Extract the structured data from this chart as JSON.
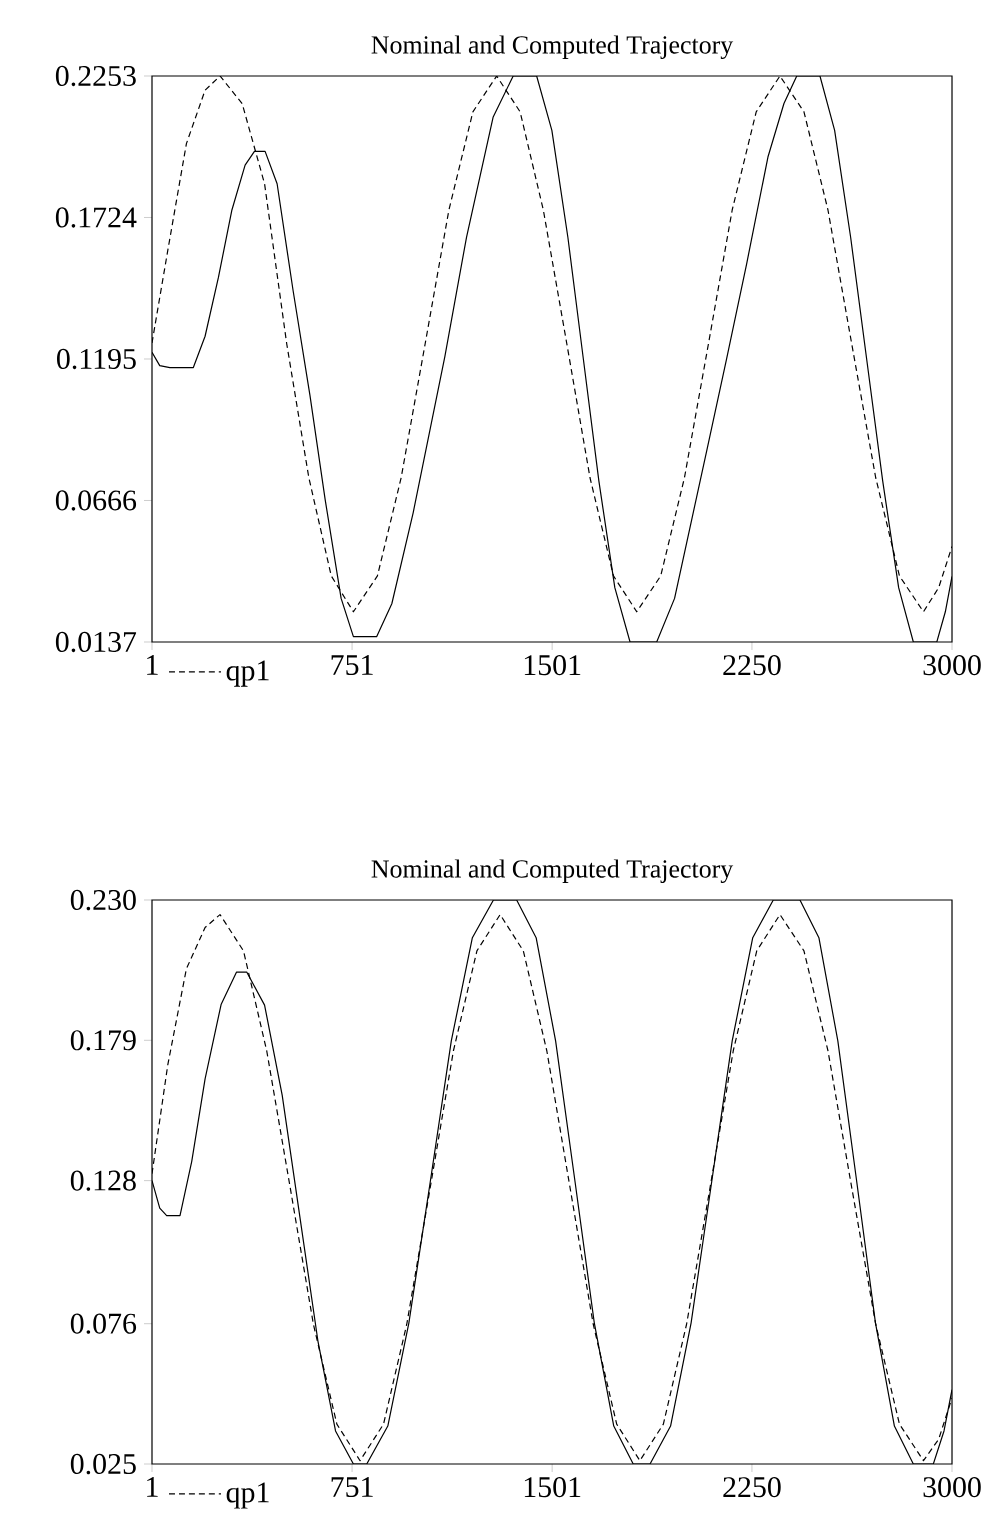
{
  "chart_data": [
    {
      "type": "line",
      "title": "Nominal and Computed Trajectory",
      "xlim": [
        1,
        3000
      ],
      "xticks": [
        1,
        751,
        1501,
        2250,
        3000
      ],
      "ylim": [
        0.0137,
        0.2253
      ],
      "yticks": [
        0.0137,
        0.0666,
        0.1195,
        0.1724,
        0.2253
      ],
      "legend": "bottom left",
      "series": [
        {
          "color": "#000000",
          "line_style": "solid",
          "x": [
            1,
            30,
            68,
            156,
            200,
            250,
            300,
            350,
            385,
            425,
            470,
            530,
            593,
            650,
            710,
            756,
            843,
            900,
            980,
            1099,
            1180,
            1280,
            1355,
            1443,
            1500,
            1560,
            1618,
            1676,
            1736,
            1793,
            1893,
            1960,
            2080,
            2155,
            2230,
            2310,
            2370,
            2418,
            2505,
            2560,
            2620,
            2680,
            2740,
            2800,
            2855,
            2943,
            2975,
            3000
          ],
          "values": [
            0.122,
            0.117,
            0.1163,
            0.1163,
            0.128,
            0.15,
            0.175,
            0.192,
            0.1971,
            0.1971,
            0.185,
            0.145,
            0.106,
            0.067,
            0.03,
            0.0157,
            0.0157,
            0.028,
            0.062,
            0.1205,
            0.165,
            0.21,
            0.2253,
            0.2253,
            0.205,
            0.165,
            0.1195,
            0.074,
            0.034,
            0.0137,
            0.0137,
            0.03,
            0.085,
            0.1195,
            0.155,
            0.195,
            0.215,
            0.2253,
            0.2253,
            0.205,
            0.165,
            0.1195,
            0.074,
            0.034,
            0.0137,
            0.0137,
            0.025,
            0.0382
          ]
        },
        {
          "name": "qp1",
          "color": "#000000",
          "line_style": "dashed",
          "x": [
            1,
            60,
            130,
            200,
            256,
            339,
            423,
            506,
            589,
            673,
            756,
            846,
            935,
            1025,
            1114,
            1204,
            1293,
            1381,
            1468,
            1556,
            1643,
            1731,
            1818,
            1908,
            1997,
            2087,
            2176,
            2266,
            2355,
            2445,
            2535,
            2624,
            2714,
            2803,
            2893,
            2950,
            3000
          ],
          "values": [
            0.1255,
            0.16,
            0.2,
            0.22,
            0.2253,
            0.215,
            0.185,
            0.1252,
            0.0751,
            0.0384,
            0.025,
            0.0384,
            0.0751,
            0.1252,
            0.1752,
            0.2119,
            0.2253,
            0.2119,
            0.1752,
            0.1252,
            0.0751,
            0.0384,
            0.025,
            0.0384,
            0.0751,
            0.1252,
            0.1752,
            0.2119,
            0.2253,
            0.2119,
            0.1752,
            0.1252,
            0.0751,
            0.0384,
            0.025,
            0.034,
            0.0494
          ]
        }
      ]
    },
    {
      "type": "line",
      "title": "Nominal and Computed Trajectory",
      "xlim": [
        1,
        3000
      ],
      "xticks": [
        1,
        751,
        1501,
        2250,
        3000
      ],
      "ylim": [
        0.025,
        0.23
      ],
      "yticks": [
        0.025,
        0.076,
        0.128,
        0.179,
        {
          "value": 0.23,
          "label": "0.230"
        }
      ],
      "legend": "bottom left",
      "series": [
        {
          "color": "#000000",
          "line_style": "solid",
          "x": [
            1,
            30,
            56,
            106,
            150,
            200,
            260,
            318,
            356,
            423,
            489,
            556,
            623,
            689,
            756,
            806,
            885,
            964,
            1044,
            1123,
            1202,
            1281,
            1368,
            1441,
            1514,
            1587,
            1659,
            1732,
            1805,
            1868,
            1945,
            2022,
            2099,
            2176,
            2253,
            2330,
            2430,
            2501,
            2572,
            2643,
            2713,
            2784,
            2855,
            2930,
            2970,
            3000
          ],
          "values": [
            0.128,
            0.118,
            0.1153,
            0.1153,
            0.135,
            0.165,
            0.192,
            0.2038,
            0.2038,
            0.1918,
            0.1591,
            0.1144,
            0.0697,
            0.037,
            0.025,
            0.025,
            0.0388,
            0.0763,
            0.1275,
            0.1788,
            0.2163,
            0.23,
            0.23,
            0.2163,
            0.1788,
            0.1275,
            0.0763,
            0.0388,
            0.025,
            0.025,
            0.0388,
            0.0763,
            0.1275,
            0.1788,
            0.2163,
            0.23,
            0.23,
            0.2163,
            0.1788,
            0.1275,
            0.0763,
            0.0388,
            0.025,
            0.025,
            0.037,
            0.052
          ]
        },
        {
          "name": "qp1",
          "color": "#000000",
          "line_style": "dashed",
          "x": [
            1,
            60,
            130,
            200,
            256,
            344,
            431,
            519,
            606,
            694,
            781,
            869,
            956,
            1044,
            1131,
            1219,
            1306,
            1393,
            1481,
            1568,
            1655,
            1743,
            1830,
            1918,
            2005,
            2093,
            2180,
            2268,
            2355,
            2445,
            2535,
            2624,
            2714,
            2803,
            2893,
            2950,
            3000
          ],
          "values": [
            0.1305,
            0.17,
            0.205,
            0.22,
            0.2247,
            0.2115,
            0.1752,
            0.1255,
            0.0758,
            0.0395,
            0.0262,
            0.0395,
            0.0758,
            0.1255,
            0.1752,
            0.2115,
            0.2247,
            0.2115,
            0.1752,
            0.1255,
            0.0758,
            0.0395,
            0.0262,
            0.0395,
            0.0758,
            0.1255,
            0.1752,
            0.2115,
            0.2247,
            0.2115,
            0.1752,
            0.1255,
            0.0758,
            0.0395,
            0.0262,
            0.034,
            0.049
          ]
        }
      ]
    }
  ]
}
